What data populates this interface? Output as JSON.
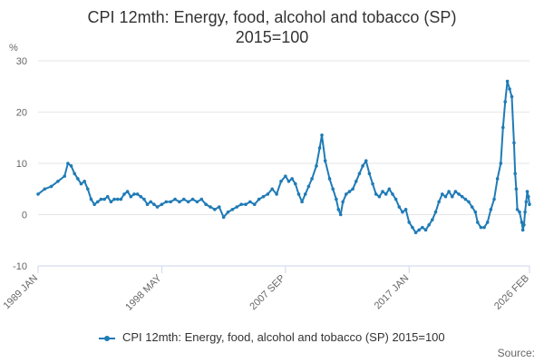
{
  "chart_data": {
    "type": "line",
    "title": "CPI 12mth: Energy, food, alcohol and tobacco (SP)",
    "subtitle": "2015=100",
    "ylabel": "%",
    "ylim": [
      -10,
      30
    ],
    "yticks": [
      -10,
      0,
      10,
      20,
      30
    ],
    "xticks": [
      "1989 JAN",
      "1998 MAY",
      "2007 SEP",
      "2017 JAN",
      "2026 FEB"
    ],
    "xlim": [
      "1989-01",
      "2026-02"
    ],
    "grid": true,
    "legend_position": "bottom",
    "series": [
      {
        "name": "CPI 12mth: Energy, food, alcohol and tobacco (SP) 2015=100",
        "color": "#1f7bb6",
        "points": [
          [
            "1989-01",
            4.0
          ],
          [
            "1989-07",
            5.0
          ],
          [
            "1990-01",
            5.5
          ],
          [
            "1990-07",
            6.5
          ],
          [
            "1991-01",
            7.5
          ],
          [
            "1991-04",
            10.0
          ],
          [
            "1991-07",
            9.5
          ],
          [
            "1991-10",
            8.0
          ],
          [
            "1992-01",
            7.0
          ],
          [
            "1992-04",
            6.0
          ],
          [
            "1992-07",
            6.5
          ],
          [
            "1992-10",
            5.0
          ],
          [
            "1993-01",
            3.0
          ],
          [
            "1993-04",
            2.0
          ],
          [
            "1993-07",
            2.5
          ],
          [
            "1993-10",
            3.0
          ],
          [
            "1994-01",
            3.0
          ],
          [
            "1994-04",
            3.5
          ],
          [
            "1994-07",
            2.5
          ],
          [
            "1994-10",
            3.0
          ],
          [
            "1995-01",
            3.0
          ],
          [
            "1995-04",
            3.0
          ],
          [
            "1995-07",
            4.0
          ],
          [
            "1995-10",
            4.5
          ],
          [
            "1996-01",
            3.5
          ],
          [
            "1996-04",
            4.0
          ],
          [
            "1996-07",
            4.0
          ],
          [
            "1996-10",
            3.5
          ],
          [
            "1997-01",
            3.0
          ],
          [
            "1997-04",
            2.0
          ],
          [
            "1997-07",
            2.5
          ],
          [
            "1997-10",
            2.0
          ],
          [
            "1998-01",
            1.5
          ],
          [
            "1998-05",
            2.0
          ],
          [
            "1998-09",
            2.5
          ],
          [
            "1999-01",
            2.5
          ],
          [
            "1999-05",
            3.0
          ],
          [
            "1999-09",
            2.5
          ],
          [
            "2000-01",
            3.0
          ],
          [
            "2000-05",
            2.5
          ],
          [
            "2000-09",
            3.0
          ],
          [
            "2001-01",
            2.5
          ],
          [
            "2001-05",
            3.0
          ],
          [
            "2001-09",
            2.0
          ],
          [
            "2002-01",
            1.5
          ],
          [
            "2002-05",
            1.0
          ],
          [
            "2002-09",
            1.5
          ],
          [
            "2003-01",
            -0.5
          ],
          [
            "2003-05",
            0.5
          ],
          [
            "2003-09",
            1.0
          ],
          [
            "2004-01",
            1.5
          ],
          [
            "2004-05",
            2.0
          ],
          [
            "2004-09",
            2.0
          ],
          [
            "2005-01",
            2.5
          ],
          [
            "2005-05",
            2.0
          ],
          [
            "2005-09",
            3.0
          ],
          [
            "2006-01",
            3.5
          ],
          [
            "2006-05",
            4.0
          ],
          [
            "2006-09",
            5.0
          ],
          [
            "2007-01",
            4.0
          ],
          [
            "2007-05",
            6.5
          ],
          [
            "2007-09",
            7.5
          ],
          [
            "2007-12",
            6.5
          ],
          [
            "2008-03",
            7.0
          ],
          [
            "2008-06",
            6.0
          ],
          [
            "2008-09",
            4.0
          ],
          [
            "2008-12",
            2.5
          ],
          [
            "2009-03",
            4.0
          ],
          [
            "2009-06",
            5.5
          ],
          [
            "2009-09",
            7.0
          ],
          [
            "2010-01",
            9.5
          ],
          [
            "2010-04",
            13.0
          ],
          [
            "2010-06",
            15.5
          ],
          [
            "2010-09",
            10.5
          ],
          [
            "2011-01",
            7.0
          ],
          [
            "2011-04",
            5.0
          ],
          [
            "2011-07",
            3.0
          ],
          [
            "2011-09",
            1.0
          ],
          [
            "2011-11",
            0.0
          ],
          [
            "2012-01",
            2.5
          ],
          [
            "2012-04",
            4.0
          ],
          [
            "2012-07",
            4.5
          ],
          [
            "2012-10",
            5.0
          ],
          [
            "2013-01",
            6.5
          ],
          [
            "2013-04",
            8.0
          ],
          [
            "2013-07",
            9.5
          ],
          [
            "2013-10",
            10.5
          ],
          [
            "2014-01",
            8.0
          ],
          [
            "2014-04",
            6.0
          ],
          [
            "2014-07",
            4.0
          ],
          [
            "2014-10",
            3.5
          ],
          [
            "2015-01",
            4.5
          ],
          [
            "2015-04",
            4.0
          ],
          [
            "2015-07",
            5.0
          ],
          [
            "2015-10",
            4.0
          ],
          [
            "2016-01",
            3.0
          ],
          [
            "2016-04",
            1.5
          ],
          [
            "2016-07",
            0.5
          ],
          [
            "2016-10",
            1.0
          ],
          [
            "2017-01",
            -1.5
          ],
          [
            "2017-04",
            -2.5
          ],
          [
            "2017-07",
            -3.5
          ],
          [
            "2017-10",
            -3.0
          ],
          [
            "2018-01",
            -2.5
          ],
          [
            "2018-04",
            -3.0
          ],
          [
            "2018-07",
            -2.0
          ],
          [
            "2018-10",
            -1.0
          ],
          [
            "2019-01",
            0.5
          ],
          [
            "2019-04",
            2.5
          ],
          [
            "2019-07",
            4.0
          ],
          [
            "2019-10",
            3.5
          ],
          [
            "2020-01",
            4.5
          ],
          [
            "2020-04",
            3.5
          ],
          [
            "2020-07",
            4.5
          ],
          [
            "2020-10",
            4.0
          ],
          [
            "2021-01",
            3.5
          ],
          [
            "2021-04",
            3.0
          ],
          [
            "2021-07",
            2.5
          ],
          [
            "2021-10",
            1.5
          ],
          [
            "2022-01",
            0.5
          ],
          [
            "2022-03",
            -1.5
          ],
          [
            "2022-06",
            -2.5
          ],
          [
            "2022-09",
            -2.5
          ],
          [
            "2022-12",
            -1.5
          ],
          [
            "2023-03",
            1.0
          ],
          [
            "2023-06",
            3.0
          ],
          [
            "2023-09",
            7.0
          ],
          [
            "2023-12",
            10.0
          ],
          [
            "2024-02",
            17.0
          ],
          [
            "2024-04",
            22.0
          ],
          [
            "2024-06",
            26.0
          ],
          [
            "2024-08",
            24.5
          ],
          [
            "2024-10",
            23.0
          ],
          [
            "2024-12",
            14.0
          ],
          [
            "2025-01",
            8.0
          ],
          [
            "2025-02",
            5.0
          ],
          [
            "2025-03",
            1.0
          ],
          [
            "2025-05",
            0.5
          ],
          [
            "2025-07",
            -1.5
          ],
          [
            "2025-08",
            -3.0
          ],
          [
            "2025-09",
            -2.0
          ],
          [
            "2025-10",
            0.5
          ],
          [
            "2025-11",
            2.5
          ],
          [
            "2025-12",
            4.5
          ],
          [
            "2026-01",
            3.5
          ],
          [
            "2026-02",
            2.0
          ]
        ]
      }
    ]
  },
  "credits": "Source:"
}
